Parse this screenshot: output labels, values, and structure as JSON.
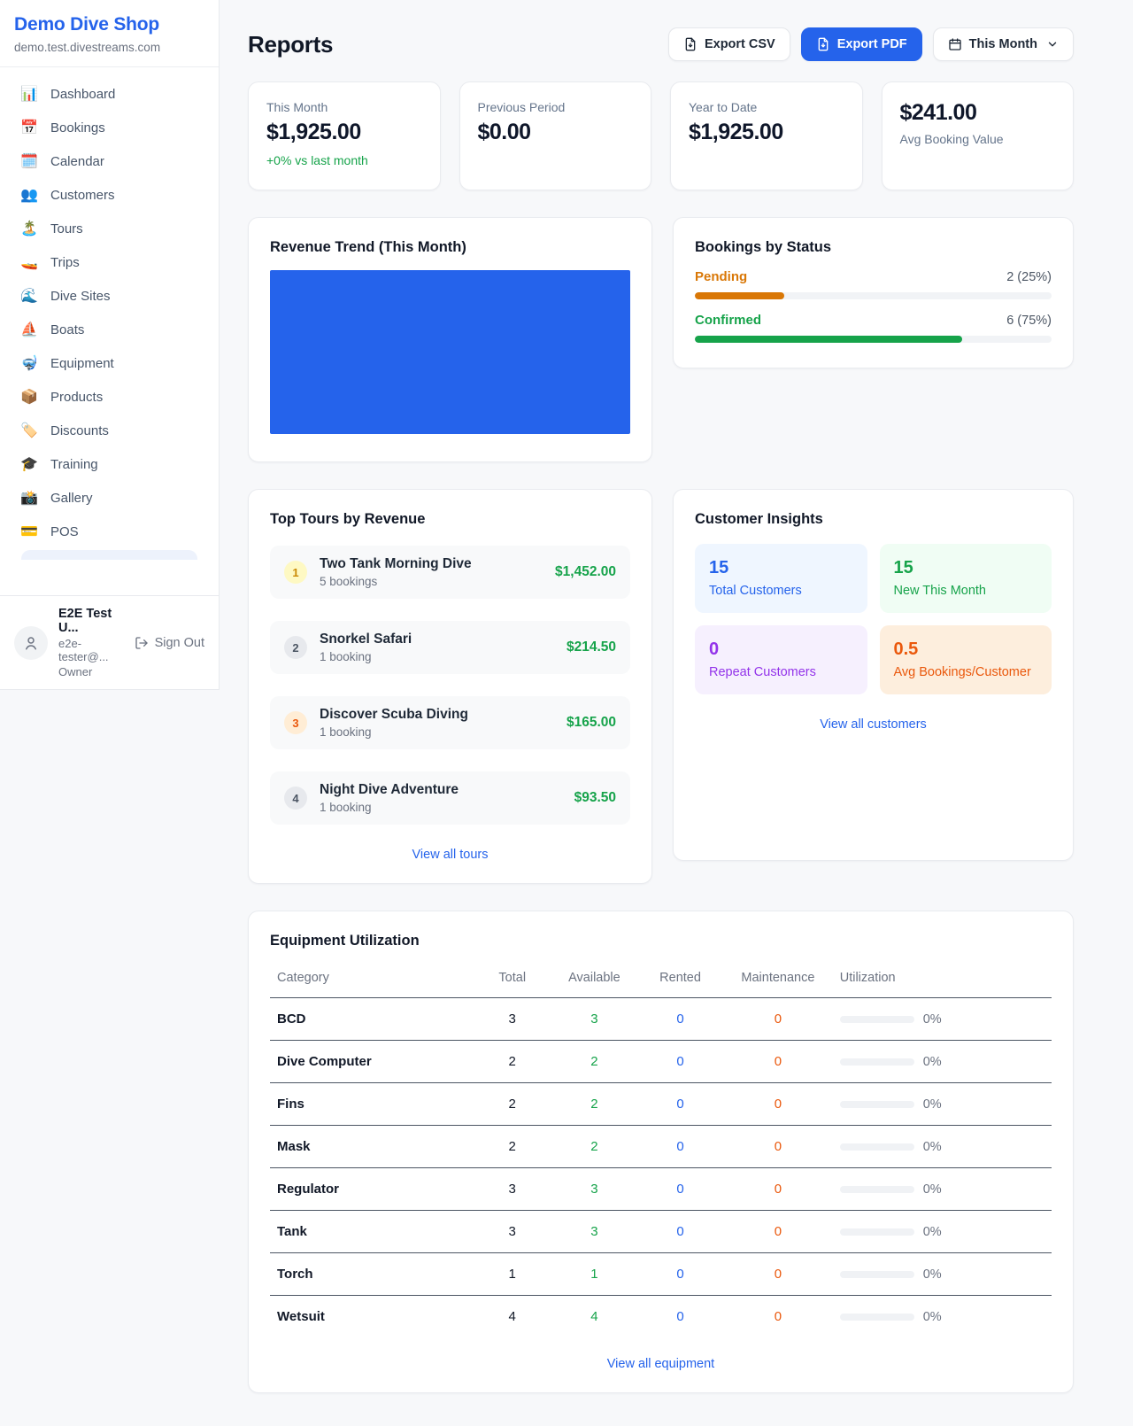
{
  "sidebar": {
    "brand": {
      "name": "Demo Dive Shop",
      "domain": "demo.test.divestreams.com"
    },
    "items": [
      {
        "icon": "📊",
        "label": "Dashboard"
      },
      {
        "icon": "📅",
        "label": "Bookings"
      },
      {
        "icon": "🗓️",
        "label": "Calendar"
      },
      {
        "icon": "👥",
        "label": "Customers"
      },
      {
        "icon": "🏝️",
        "label": "Tours"
      },
      {
        "icon": "🚤",
        "label": "Trips"
      },
      {
        "icon": "🌊",
        "label": "Dive Sites"
      },
      {
        "icon": "⛵",
        "label": "Boats"
      },
      {
        "icon": "🤿",
        "label": "Equipment"
      },
      {
        "icon": "📦",
        "label": "Products"
      },
      {
        "icon": "🏷️",
        "label": "Discounts"
      },
      {
        "icon": "🎓",
        "label": "Training"
      },
      {
        "icon": "📸",
        "label": "Gallery"
      },
      {
        "icon": "💳",
        "label": "POS"
      }
    ],
    "user": {
      "name": "E2E Test U...",
      "email": "e2e-tester@...",
      "role": "Owner",
      "sign_out": "Sign Out"
    }
  },
  "header": {
    "title": "Reports",
    "export_csv": "Export CSV",
    "export_pdf": "Export PDF",
    "period": "This Month"
  },
  "stats": {
    "this_month": {
      "label": "This Month",
      "value": "$1,925.00",
      "delta": "+0% vs last month"
    },
    "previous_period": {
      "label": "Previous Period",
      "value": "$0.00"
    },
    "year_to_date": {
      "label": "Year to Date",
      "value": "$1,925.00"
    },
    "avg_booking": {
      "value": "$241.00",
      "label": "Avg Booking Value"
    }
  },
  "revenue_trend": {
    "title": "Revenue Trend (This Month)"
  },
  "bookings_by_status": {
    "title": "Bookings by Status",
    "rows": [
      {
        "label": "Pending",
        "value": "2 (25%)",
        "pct": 25
      },
      {
        "label": "Confirmed",
        "value": "6 (75%)",
        "pct": 75
      }
    ]
  },
  "top_tours": {
    "title": "Top Tours by Revenue",
    "rows": [
      {
        "rank": "1",
        "name": "Two Tank Morning Dive",
        "bookings": "5 bookings",
        "revenue": "$1,452.00"
      },
      {
        "rank": "2",
        "name": "Snorkel Safari",
        "bookings": "1 booking",
        "revenue": "$214.50"
      },
      {
        "rank": "3",
        "name": "Discover Scuba Diving",
        "bookings": "1 booking",
        "revenue": "$165.00"
      },
      {
        "rank": "4",
        "name": "Night Dive Adventure",
        "bookings": "1 booking",
        "revenue": "$93.50"
      }
    ],
    "view_all": "View all tours"
  },
  "customer_insights": {
    "title": "Customer Insights",
    "tiles": [
      {
        "value": "15",
        "label": "Total Customers"
      },
      {
        "value": "15",
        "label": "New This Month"
      },
      {
        "value": "0",
        "label": "Repeat Customers"
      },
      {
        "value": "0.5",
        "label": "Avg Bookings/Customer"
      }
    ],
    "view_all": "View all customers"
  },
  "equipment": {
    "title": "Equipment Utilization",
    "columns": [
      "Category",
      "Total",
      "Available",
      "Rented",
      "Maintenance",
      "Utilization"
    ],
    "rows": [
      {
        "category": "BCD",
        "total": "3",
        "available": "3",
        "rented": "0",
        "maintenance": "0",
        "utilization": "0%",
        "pct": 0
      },
      {
        "category": "Dive Computer",
        "total": "2",
        "available": "2",
        "rented": "0",
        "maintenance": "0",
        "utilization": "0%",
        "pct": 0
      },
      {
        "category": "Fins",
        "total": "2",
        "available": "2",
        "rented": "0",
        "maintenance": "0",
        "utilization": "0%",
        "pct": 0
      },
      {
        "category": "Mask",
        "total": "2",
        "available": "2",
        "rented": "0",
        "maintenance": "0",
        "utilization": "0%",
        "pct": 0
      },
      {
        "category": "Regulator",
        "total": "3",
        "available": "3",
        "rented": "0",
        "maintenance": "0",
        "utilization": "0%",
        "pct": 0
      },
      {
        "category": "Tank",
        "total": "3",
        "available": "3",
        "rented": "0",
        "maintenance": "0",
        "utilization": "0%",
        "pct": 0
      },
      {
        "category": "Torch",
        "total": "1",
        "available": "1",
        "rented": "0",
        "maintenance": "0",
        "utilization": "0%",
        "pct": 0
      },
      {
        "category": "Wetsuit",
        "total": "4",
        "available": "4",
        "rented": "0",
        "maintenance": "0",
        "utilization": "0%",
        "pct": 0
      }
    ],
    "view_all": "View all equipment"
  },
  "colors": {
    "accent_blue": "#2563eb",
    "success_green": "#16a34a",
    "pending_orange": "#d97706",
    "maintenance_orange": "#ea580c",
    "repeat_purple": "#9333ea"
  }
}
